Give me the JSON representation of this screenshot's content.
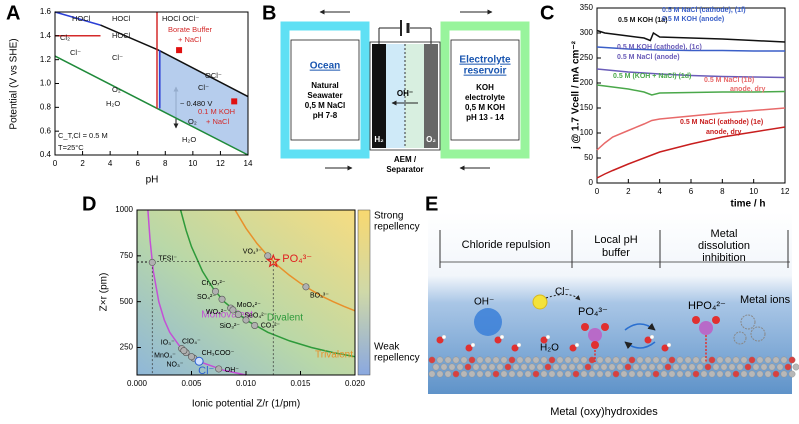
{
  "panel_labels": [
    "A",
    "B",
    "C",
    "D",
    "E"
  ],
  "chart_data": [
    {
      "panel": "A",
      "type": "line",
      "xlabel": "pH",
      "ylabel": "Potential (V vs SHE)",
      "xlim": [
        0,
        14
      ],
      "ylim": [
        0.4,
        1.6
      ],
      "xticks": [
        0,
        2,
        4,
        6,
        8,
        10,
        12,
        14
      ],
      "yticks": [
        0.4,
        0.6,
        0.8,
        {
          "value": 1,
          "label": "1.0"
        },
        1.2,
        1.4,
        1.6
      ],
      "region": {
        "color": "#a9c4ea",
        "x": [
          7.5,
          14,
          14,
          7.5
        ],
        "values": [
          1.28,
          0.89,
          0.4,
          0.79
        ]
      },
      "series": [
        {
          "color": "#2b3fd6",
          "x": [
            0,
            3.3
          ],
          "values": [
            1.6,
            1.49
          ]
        },
        {
          "color": "#d42a2a",
          "x": [
            0,
            3.3
          ],
          "values": [
            1.4,
            1.4
          ]
        },
        {
          "color": "#111111",
          "x": [
            3.3,
            7.5,
            14
          ],
          "values": [
            1.49,
            1.28,
            0.89
          ]
        },
        {
          "color": "#1f8a3a",
          "x": [
            0,
            14
          ],
          "values": [
            1.23,
            0.4
          ]
        },
        {
          "color": "#d42a2a",
          "x": [
            7.4,
            7.4
          ],
          "values": [
            1.6,
            0.79
          ]
        },
        {
          "color": "#2b3fd6",
          "x": [
            7.6,
            7.6
          ],
          "values": [
            1.28,
            0.79
          ]
        }
      ],
      "points": {
        "color": "#e01010",
        "x": [
          9,
          13
        ],
        "values": [
          1.28,
          0.85
        ]
      },
      "annotations": [
        {
          "text": "HOCl",
          "color": "#111"
        },
        {
          "text": "HOCl",
          "color": "#111"
        },
        {
          "text": "HOCl OCl⁻",
          "color": "#111"
        },
        {
          "text": "Cl₂",
          "color": "#111"
        },
        {
          "text": "Cl⁻",
          "color": "#111"
        },
        {
          "text": "HOCl",
          "color": "#111"
        },
        {
          "text": "Cl⁻",
          "color": "#111"
        },
        {
          "text": "OCl⁻",
          "color": "#111"
        },
        {
          "text": "Cl⁻",
          "color": "#111"
        },
        {
          "text": "O₂",
          "color": "#111"
        },
        {
          "text": "H₂O",
          "color": "#111"
        },
        {
          "text": "~ 0.480 V",
          "color": "#111"
        },
        {
          "text": "O₂",
          "color": "#111"
        },
        {
          "text": "H₂O",
          "color": "#111"
        },
        {
          "text": "Borate Buffer",
          "color": "#d42a2a"
        },
        {
          "text": "+ NaCl",
          "color": "#d42a2a"
        },
        {
          "text": "0.1 M KOH",
          "color": "#d42a2a"
        },
        {
          "text": "+ NaCl",
          "color": "#d42a2a"
        },
        {
          "text": "C_T,Cl = 0.5 M",
          "color": "#111"
        },
        {
          "text": "T=25°C",
          "color": "#111"
        }
      ]
    },
    {
      "panel": "C",
      "type": "line",
      "xlabel": "time / h",
      "ylabel": "j @ 1.7 Vcell / mA cm⁻²",
      "xlim": [
        0,
        12
      ],
      "ylim": [
        0,
        350
      ],
      "xticks": [
        0,
        2,
        4,
        6,
        8,
        10,
        12
      ],
      "yticks": [
        0,
        50,
        100,
        150,
        200,
        250,
        300,
        350
      ],
      "series": [
        {
          "label": [
            "0.5 M KOH (1a)"
          ],
          "color": "#111111",
          "x": [
            0,
            0.5,
            1,
            2,
            3,
            3.4,
            3.6,
            4,
            6,
            8,
            10,
            12
          ],
          "values": [
            305,
            300,
            298,
            294,
            290,
            285,
            300,
            292,
            290,
            288,
            285,
            282
          ]
        },
        {
          "label": [
            "0.5 M NaCl (cathode), (1f)",
            "0.5 M KOH (anode)"
          ],
          "color": "#3a5fc8",
          "x": [
            0,
            1,
            2,
            3,
            4,
            6,
            8,
            10,
            12
          ],
          "values": [
            272,
            270,
            268,
            267,
            266,
            265,
            265,
            264,
            264
          ]
        },
        {
          "label": [
            "0.5 M KOH (cathode), (1c)",
            "0.5 M NaCl (anode)"
          ],
          "color": "#6a5cb8",
          "x": [
            0,
            2,
            4,
            6,
            8,
            10,
            12
          ],
          "values": [
            228,
            222,
            218,
            215,
            213,
            212,
            211
          ]
        },
        {
          "label": [
            "0.5 M (KOH + NaCl) (1d)"
          ],
          "color": "#4aa84a",
          "x": [
            0,
            1,
            2,
            3,
            3.5,
            4,
            6,
            8,
            10,
            12
          ],
          "values": [
            196,
            192,
            188,
            182,
            176,
            180,
            181,
            182,
            182,
            183
          ]
        },
        {
          "label": [
            "0.5 M NaCl (1b)",
            "anode, dry"
          ],
          "color": "#e86a6a",
          "x": [
            0,
            0.5,
            1,
            2,
            3,
            3.5,
            4,
            6,
            8,
            10,
            12
          ],
          "values": [
            66,
            80,
            92,
            105,
            118,
            125,
            128,
            134,
            140,
            145,
            150
          ]
        },
        {
          "label": [
            "0.5 M NaCl (cathode) (1e)",
            "anode, dry"
          ],
          "color": "#c81e1e",
          "x": [
            0,
            0.5,
            1,
            2,
            3,
            4,
            6,
            8,
            10,
            12
          ],
          "values": [
            10,
            18,
            25,
            38,
            50,
            62,
            78,
            92,
            102,
            112
          ]
        }
      ]
    },
    {
      "panel": "D",
      "type": "line",
      "xlabel": "Ionic potential Z/r (1/pm)",
      "ylabel": "Z×r (pm)",
      "xlim": [
        0,
        0.02
      ],
      "ylim": [
        100,
        1000
      ],
      "xticks": [
        {
          "value": 0,
          "label": "0.000"
        },
        0.005,
        {
          "value": 0.01,
          "label": "0.010"
        },
        0.015,
        {
          "value": 0.02,
          "label": "0.020"
        }
      ],
      "yticks": [
        250,
        500,
        750,
        1000
      ],
      "colorbar": {
        "top": [
          "Strong",
          "repellency"
        ],
        "bottom": [
          "Weak",
          "repellency"
        ]
      },
      "series": [
        {
          "name": "Monovalent",
          "color": "#c44fd6",
          "x": [
            0.001,
            0.0012,
            0.0015,
            0.002,
            0.0025,
            0.003,
            0.004,
            0.005,
            0.006,
            0.008,
            0.01
          ],
          "values": [
            1000,
            833,
            667,
            500,
            400,
            333,
            250,
            200,
            167,
            125,
            100
          ]
        },
        {
          "name": "Divalent",
          "color": "#2e9a3a",
          "x": [
            0.004,
            0.0045,
            0.005,
            0.006,
            0.007,
            0.008,
            0.01,
            0.012,
            0.014,
            0.016,
            0.018,
            0.02
          ],
          "values": [
            1000,
            889,
            800,
            667,
            571,
            500,
            400,
            333,
            286,
            250,
            222,
            200
          ]
        },
        {
          "name": "Trivalent",
          "color": "#e8902a",
          "x": [
            0.009,
            0.01,
            0.011,
            0.012,
            0.013,
            0.014,
            0.015,
            0.016,
            0.017,
            0.018,
            0.019,
            0.02
          ],
          "values": [
            1000,
            900,
            818,
            750,
            692,
            643,
            600,
            563,
            529,
            500,
            474,
            450
          ]
        }
      ],
      "ions": {
        "labels": [
          "TFSI⁻",
          "VO₄³⁻",
          "BO₃³⁻",
          "Cr₂O₇²⁻",
          "SO₄²⁻",
          "MoO₄²⁻",
          "WO₄²⁻",
          "SeO₄²⁻",
          "CO₃²⁻",
          "SiO₃²⁻",
          "IO₃⁻",
          "ClO₄⁻",
          "MnO₄⁻",
          "CH₃COO⁻",
          "NO₃⁻",
          "OH⁻"
        ],
        "x": [
          0.0014,
          0.012,
          0.0155,
          0.0072,
          0.0078,
          0.0086,
          0.0088,
          0.0093,
          0.0108,
          0.01,
          0.0041,
          0.0045,
          0.0043,
          0.0052,
          0.005,
          0.0075
        ],
        "values": [
          714,
          750,
          581,
          556,
          513,
          465,
          455,
          430,
          370,
          400,
          244,
          222,
          233,
          192,
          200,
          133
        ]
      },
      "highlights": [
        {
          "label": "PO₄³⁻",
          "color": "#e02020",
          "x": 0.0125,
          "value": 720
        },
        {
          "label": "Cl⁻",
          "color": "#2a5fd0",
          "x": 0.0057,
          "value": 175
        }
      ]
    }
  ],
  "diagram_b": {
    "left_title": "Ocean",
    "left_lines": [
      "Natural",
      "Seawater",
      "0,5 M NaCl",
      "pH 7-8"
    ],
    "right_title": [
      "Electrolyte",
      "reservoir"
    ],
    "right_lines": [
      "KOH",
      "electrolyte",
      "0,5 M KOH",
      "pH 13 - 14"
    ],
    "ion": "OH⁻",
    "cathode": "H₂",
    "anode": "O₂",
    "separator": [
      "AEM /",
      "Separator"
    ]
  },
  "diagram_e": {
    "headers": [
      [
        "Chloride repulsion"
      ],
      [
        "Local pH",
        "buffer"
      ],
      [
        "Metal",
        "dissolution",
        "inhibition"
      ]
    ],
    "chloride": "Cl⁻",
    "phosphate": "PO₄³⁻",
    "hydrogen_phosphate": "HPO₄²⁻",
    "hydroxide": "OH⁻",
    "water": "H₂O",
    "metal_ions": "Metal ions",
    "substrate": "Metal (oxy)hydroxides"
  }
}
